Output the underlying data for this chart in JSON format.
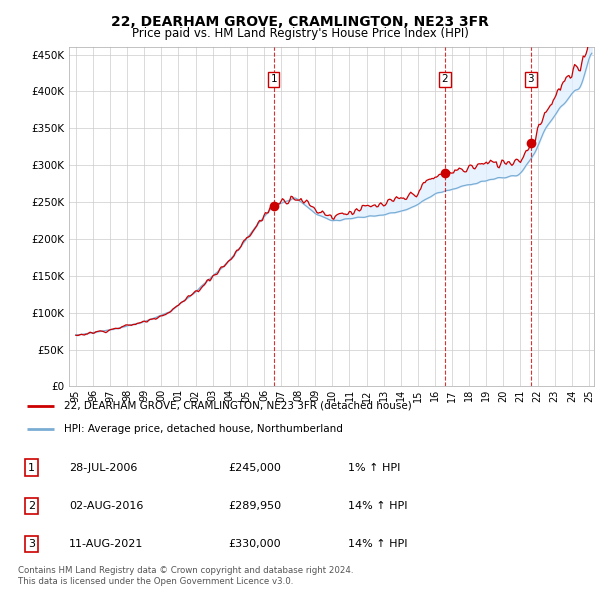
{
  "title": "22, DEARHAM GROVE, CRAMLINGTON, NE23 3FR",
  "subtitle": "Price paid vs. HM Land Registry's House Price Index (HPI)",
  "ylim": [
    0,
    460000
  ],
  "yticks": [
    0,
    50000,
    100000,
    150000,
    200000,
    250000,
    300000,
    350000,
    400000,
    450000
  ],
  "ytick_labels": [
    "£0",
    "£50K",
    "£100K",
    "£150K",
    "£200K",
    "£250K",
    "£300K",
    "£350K",
    "£400K",
    "£450K"
  ],
  "line1_color": "#cc0000",
  "line2_color": "#7aadd4",
  "fill_color": "#ddeeff",
  "vline_color": "#cc0000",
  "transactions": [
    {
      "date": 2006.57,
      "price": 245000,
      "label": "1"
    },
    {
      "date": 2016.59,
      "price": 289950,
      "label": "2"
    },
    {
      "date": 2021.61,
      "price": 330000,
      "label": "3"
    }
  ],
  "legend1_label": "22, DEARHAM GROVE, CRAMLINGTON, NE23 3FR (detached house)",
  "legend2_label": "HPI: Average price, detached house, Northumberland",
  "table_rows": [
    [
      "1",
      "28-JUL-2006",
      "£245,000",
      "1% ↑ HPI"
    ],
    [
      "2",
      "02-AUG-2016",
      "£289,950",
      "14% ↑ HPI"
    ],
    [
      "3",
      "11-AUG-2021",
      "£330,000",
      "14% ↑ HPI"
    ]
  ],
  "footnote": "Contains HM Land Registry data © Crown copyright and database right 2024.\nThis data is licensed under the Open Government Licence v3.0.",
  "xlim_start": 1995.0,
  "xlim_end": 2025.3,
  "xtick_years": [
    1995,
    1996,
    1997,
    1998,
    1999,
    2000,
    2001,
    2002,
    2003,
    2004,
    2005,
    2006,
    2007,
    2008,
    2009,
    2010,
    2011,
    2012,
    2013,
    2014,
    2015,
    2016,
    2017,
    2018,
    2019,
    2020,
    2021,
    2022,
    2023,
    2024,
    2025
  ]
}
